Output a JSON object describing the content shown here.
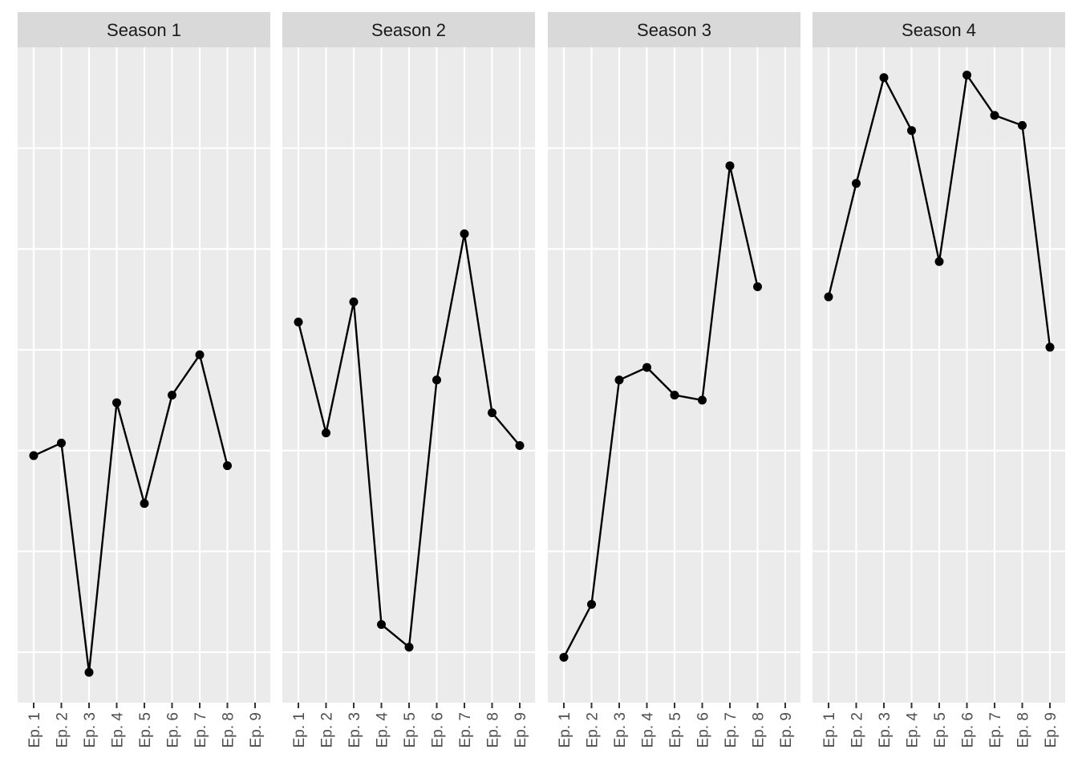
{
  "chart_data": {
    "type": "line",
    "facet_by": "season",
    "x_categories": [
      "Ep. 1",
      "Ep. 2",
      "Ep. 3",
      "Ep. 4",
      "Ep. 5",
      "Ep. 6",
      "Ep. 7",
      "Ep. 8",
      "Ep. 9"
    ],
    "y_axis_labels_shown": false,
    "ylim": [
      0,
      13
    ],
    "y_gridlines": [
      1,
      3,
      5,
      7,
      9,
      11
    ],
    "grid": true,
    "legend": "none",
    "colors": {
      "panel_background": "#ebebeb",
      "strip_background": "#d9d9d9",
      "grid": "#ffffff",
      "line": "#000000",
      "point": "#000000"
    },
    "panels": [
      {
        "title": "Season 1",
        "values": [
          4.9,
          5.15,
          0.6,
          5.95,
          3.95,
          6.1,
          6.9,
          4.7
        ]
      },
      {
        "title": "Season 2",
        "values": [
          7.55,
          5.35,
          7.95,
          1.55,
          1.1,
          6.4,
          9.3,
          5.75,
          5.1
        ]
      },
      {
        "title": "Season 3",
        "values": [
          0.9,
          1.95,
          6.4,
          6.65,
          6.1,
          6.0,
          10.65,
          8.25
        ]
      },
      {
        "title": "Season 4",
        "values": [
          8.05,
          10.3,
          12.4,
          11.35,
          8.75,
          12.45,
          11.65,
          11.45,
          7.05
        ]
      }
    ]
  }
}
